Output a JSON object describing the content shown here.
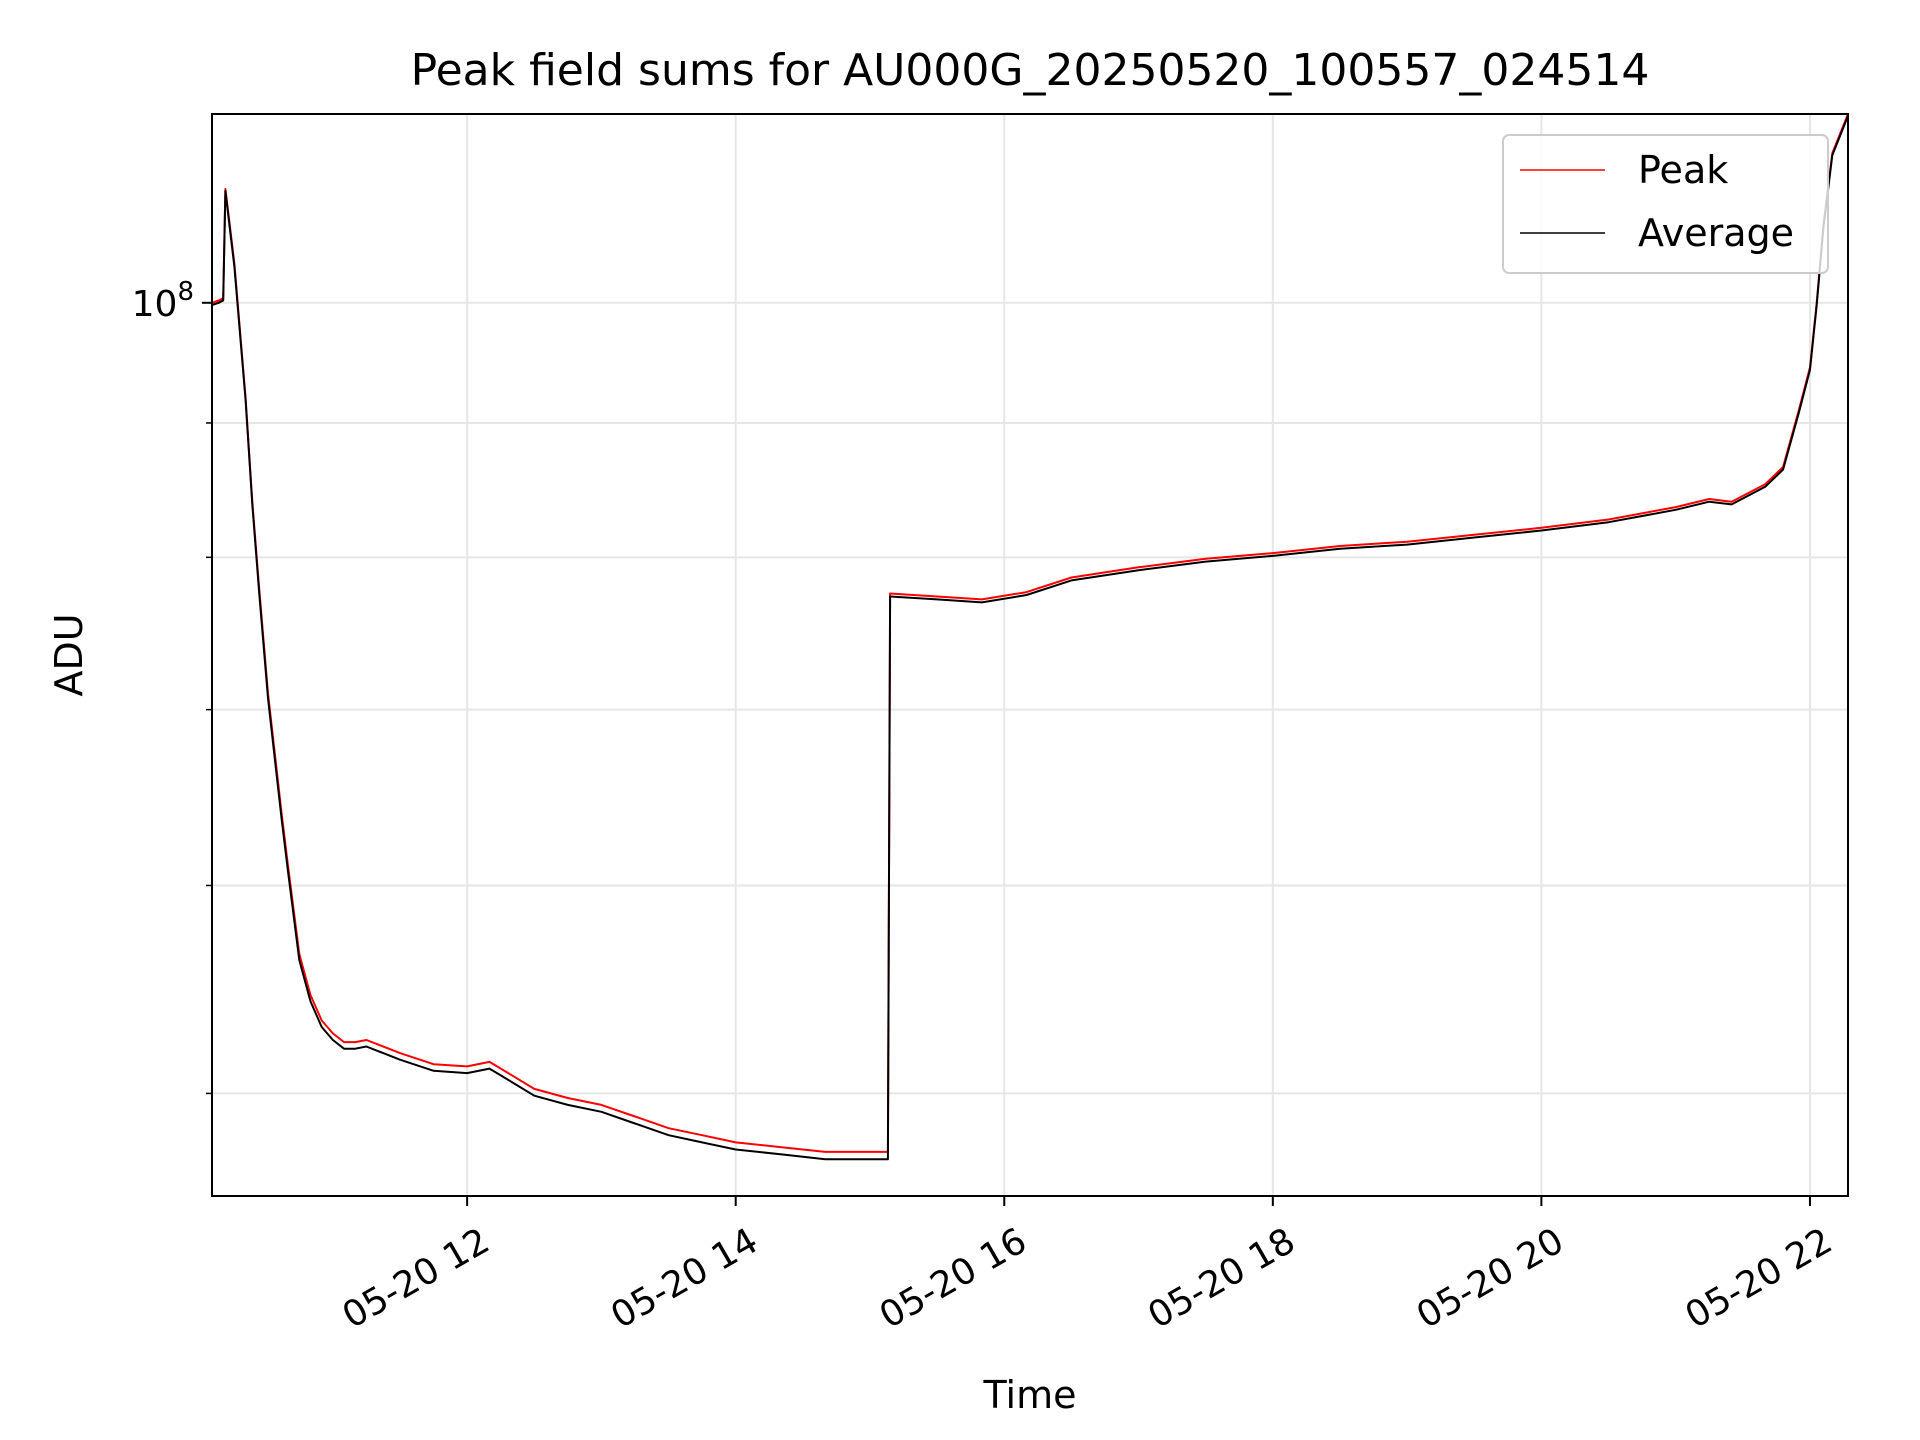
{
  "chart_data": {
    "type": "line",
    "title": "Peak field sums for AU000G_20250520_100557_024514",
    "xlabel": "Time",
    "ylabel": "ADU",
    "x_format": "MM-DD HH",
    "x_range": [
      "2025-05-20 10:06",
      "2025-05-20 22:17"
    ],
    "x_ticks": [
      "05-20 12",
      "05-20 14",
      "05-20 16",
      "05-20 18",
      "05-20 20",
      "05-20 22"
    ],
    "x_tick_times": [
      "2025-05-20 12:00",
      "2025-05-20 14:00",
      "2025-05-20 16:00",
      "2025-05-20 18:00",
      "2025-05-20 20:00",
      "2025-05-20 22:00"
    ],
    "y_scale": "log",
    "ylim": [
      45700000,
      118000000
    ],
    "y_major_ticks": [
      {
        "value": 100000000,
        "base": "10",
        "exp": "8"
      }
    ],
    "y_minor_ticks": [
      50000000,
      60000000,
      70000000,
      80000000,
      90000000
    ],
    "grid": true,
    "legend_position": "upper right",
    "series": [
      {
        "name": "Peak",
        "color": "#ff0000",
        "points": [
          [
            "2025-05-20 10:06",
            100000000
          ],
          [
            "2025-05-20 10:09",
            100200000
          ],
          [
            "2025-05-20 10:11",
            100400000
          ],
          [
            "2025-05-20 10:12",
            110500000
          ],
          [
            "2025-05-20 10:16",
            103500000
          ],
          [
            "2025-05-20 10:21",
            92000000
          ],
          [
            "2025-05-20 10:24",
            84000000
          ],
          [
            "2025-05-20 10:27",
            78000000
          ],
          [
            "2025-05-20 10:31",
            71000000
          ],
          [
            "2025-05-20 10:37",
            64000000
          ],
          [
            "2025-05-20 10:40",
            61000000
          ],
          [
            "2025-05-20 10:45",
            56500000
          ],
          [
            "2025-05-20 10:50",
            54500000
          ],
          [
            "2025-05-20 10:55",
            53300000
          ],
          [
            "2025-05-20 11:00",
            52700000
          ],
          [
            "2025-05-20 11:05",
            52300000
          ],
          [
            "2025-05-20 11:10",
            52300000
          ],
          [
            "2025-05-20 11:15",
            52400000
          ],
          [
            "2025-05-20 11:20",
            52200000
          ],
          [
            "2025-05-20 11:30",
            51800000
          ],
          [
            "2025-05-20 11:45",
            51300000
          ],
          [
            "2025-05-20 12:00",
            51200000
          ],
          [
            "2025-05-20 12:10",
            51400000
          ],
          [
            "2025-05-20 12:20",
            50800000
          ],
          [
            "2025-05-20 12:30",
            50200000
          ],
          [
            "2025-05-20 12:45",
            49800000
          ],
          [
            "2025-05-20 13:00",
            49500000
          ],
          [
            "2025-05-20 13:15",
            49000000
          ],
          [
            "2025-05-20 13:30",
            48500000
          ],
          [
            "2025-05-20 13:45",
            48200000
          ],
          [
            "2025-05-20 14:00",
            47900000
          ],
          [
            "2025-05-20 14:20",
            47700000
          ],
          [
            "2025-05-20 14:40",
            47500000
          ],
          [
            "2025-05-20 15:00",
            47500000
          ],
          [
            "2025-05-20 15:08",
            47500000
          ],
          [
            "2025-05-20 15:09",
            77500000
          ],
          [
            "2025-05-20 15:30",
            77300000
          ],
          [
            "2025-05-20 15:50",
            77100000
          ],
          [
            "2025-05-20 16:10",
            77600000
          ],
          [
            "2025-05-20 16:30",
            78600000
          ],
          [
            "2025-05-20 17:00",
            79300000
          ],
          [
            "2025-05-20 17:30",
            79900000
          ],
          [
            "2025-05-20 18:00",
            80300000
          ],
          [
            "2025-05-20 18:30",
            80800000
          ],
          [
            "2025-05-20 19:00",
            81100000
          ],
          [
            "2025-05-20 19:30",
            81600000
          ],
          [
            "2025-05-20 20:00",
            82100000
          ],
          [
            "2025-05-20 20:30",
            82700000
          ],
          [
            "2025-05-20 21:00",
            83600000
          ],
          [
            "2025-05-20 21:15",
            84200000
          ],
          [
            "2025-05-20 21:25",
            84000000
          ],
          [
            "2025-05-20 21:40",
            85300000
          ],
          [
            "2025-05-20 21:48",
            86600000
          ],
          [
            "2025-05-20 21:55",
            91000000
          ],
          [
            "2025-05-20 22:00",
            94500000
          ],
          [
            "2025-05-20 22:03",
            100000000
          ],
          [
            "2025-05-20 22:06",
            107000000
          ],
          [
            "2025-05-20 22:10",
            114000000
          ],
          [
            "2025-05-20 22:17",
            118000000
          ]
        ]
      },
      {
        "name": "Average",
        "color": "#000000",
        "points": [
          [
            "2025-05-20 10:06",
            99800000
          ],
          [
            "2025-05-20 10:09",
            100000000
          ],
          [
            "2025-05-20 10:11",
            100200000
          ],
          [
            "2025-05-20 10:12",
            110300000
          ],
          [
            "2025-05-20 10:16",
            103200000
          ],
          [
            "2025-05-20 10:21",
            91800000
          ],
          [
            "2025-05-20 10:24",
            83800000
          ],
          [
            "2025-05-20 10:27",
            77700000
          ],
          [
            "2025-05-20 10:31",
            70700000
          ],
          [
            "2025-05-20 10:37",
            63700000
          ],
          [
            "2025-05-20 10:40",
            60700000
          ],
          [
            "2025-05-20 10:45",
            56200000
          ],
          [
            "2025-05-20 10:50",
            54200000
          ],
          [
            "2025-05-20 10:55",
            53000000
          ],
          [
            "2025-05-20 11:00",
            52400000
          ],
          [
            "2025-05-20 11:05",
            52000000
          ],
          [
            "2025-05-20 11:10",
            52000000
          ],
          [
            "2025-05-20 11:15",
            52100000
          ],
          [
            "2025-05-20 11:20",
            51900000
          ],
          [
            "2025-05-20 11:30",
            51500000
          ],
          [
            "2025-05-20 11:45",
            51000000
          ],
          [
            "2025-05-20 12:00",
            50900000
          ],
          [
            "2025-05-20 12:10",
            51100000
          ],
          [
            "2025-05-20 12:20",
            50500000
          ],
          [
            "2025-05-20 12:30",
            49900000
          ],
          [
            "2025-05-20 12:45",
            49500000
          ],
          [
            "2025-05-20 13:00",
            49200000
          ],
          [
            "2025-05-20 13:15",
            48700000
          ],
          [
            "2025-05-20 13:30",
            48200000
          ],
          [
            "2025-05-20 13:45",
            47900000
          ],
          [
            "2025-05-20 14:00",
            47600000
          ],
          [
            "2025-05-20 14:20",
            47400000
          ],
          [
            "2025-05-20 14:40",
            47200000
          ],
          [
            "2025-05-20 15:00",
            47200000
          ],
          [
            "2025-05-20 15:08",
            47200000
          ],
          [
            "2025-05-20 15:09",
            77300000
          ],
          [
            "2025-05-20 15:30",
            77100000
          ],
          [
            "2025-05-20 15:50",
            76900000
          ],
          [
            "2025-05-20 16:10",
            77400000
          ],
          [
            "2025-05-20 16:30",
            78400000
          ],
          [
            "2025-05-20 17:00",
            79100000
          ],
          [
            "2025-05-20 17:30",
            79700000
          ],
          [
            "2025-05-20 18:00",
            80100000
          ],
          [
            "2025-05-20 18:30",
            80600000
          ],
          [
            "2025-05-20 19:00",
            80900000
          ],
          [
            "2025-05-20 19:30",
            81400000
          ],
          [
            "2025-05-20 20:00",
            81900000
          ],
          [
            "2025-05-20 20:30",
            82500000
          ],
          [
            "2025-05-20 21:00",
            83400000
          ],
          [
            "2025-05-20 21:15",
            84000000
          ],
          [
            "2025-05-20 21:25",
            83800000
          ],
          [
            "2025-05-20 21:40",
            85100000
          ],
          [
            "2025-05-20 21:48",
            86400000
          ],
          [
            "2025-05-20 21:55",
            90800000
          ],
          [
            "2025-05-20 22:00",
            94300000
          ],
          [
            "2025-05-20 22:03",
            99800000
          ],
          [
            "2025-05-20 22:06",
            106800000
          ],
          [
            "2025-05-20 22:10",
            113800000
          ],
          [
            "2025-05-20 22:17",
            117800000
          ]
        ]
      }
    ]
  }
}
